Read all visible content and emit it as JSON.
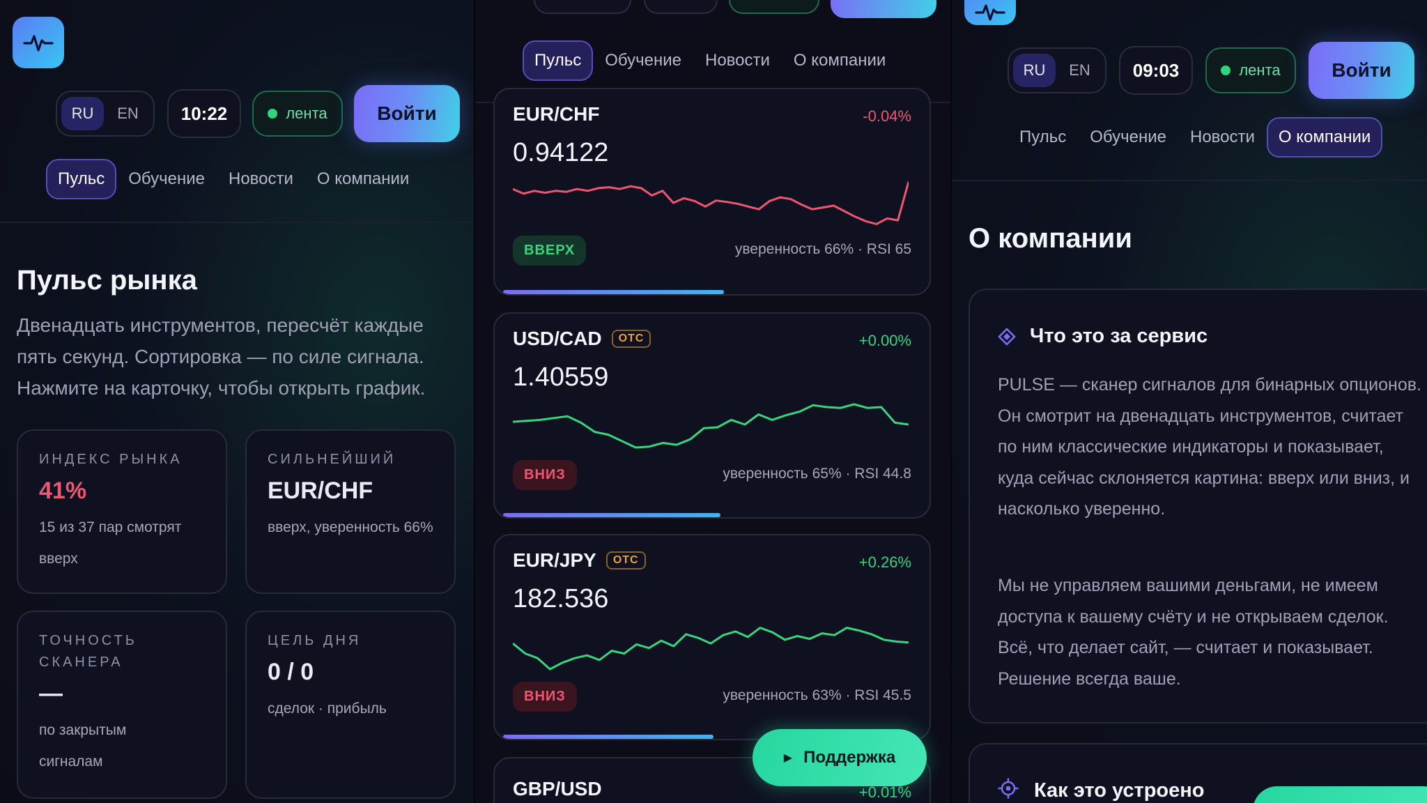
{
  "common": {
    "lang_ru": "RU",
    "lang_en": "EN",
    "feed_label": "лента",
    "login_label": "Войти",
    "nav": [
      "Пульс",
      "Обучение",
      "Новости",
      "О компании"
    ]
  },
  "panel1": {
    "time": "10:22",
    "title": "Пульс рынка",
    "lead": "Двенадцать инструментов, пересчёт каждые пять секунд. Сортировка — по силе сигнала. Нажмите на карточку, чтобы открыть график.",
    "stats": [
      {
        "key": "ИНДЕКС РЫНКА",
        "value": "41%",
        "desc": "15 из 37 пар смотрят вверх",
        "color": "#f05571"
      },
      {
        "key": "СИЛЬНЕЙШИЙ",
        "value": "EUR/CHF",
        "desc": "вверх, уверенность 66%",
        "color": "#f4f5fb"
      },
      {
        "key": "ТОЧНОСТЬ СКАНЕРА",
        "value": "—",
        "desc": "по закрытым сигналам",
        "color": "#f4f5fb"
      },
      {
        "key": "ЦЕЛЬ ДНЯ",
        "value": "0 / 0",
        "desc": "сделок · прибыль",
        "color": "#f4f5fb"
      }
    ]
  },
  "panel2": {
    "cards": [
      {
        "pair": "EUR/CHF",
        "otc": "",
        "change": "-0.04%",
        "price": "0.94122",
        "badge": "ВВЕРХ",
        "direction": "up",
        "confidence": "уверенность 66% · RSI 65",
        "confidence_pct": 66,
        "trend_color": "#f05571",
        "change_color": "#f05571",
        "spark": [
          0.8,
          0.7,
          0.76,
          0.72,
          0.76,
          0.74,
          0.8,
          0.76,
          0.82,
          0.84,
          0.8,
          0.86,
          0.82,
          0.66,
          0.76,
          0.5,
          0.6,
          0.54,
          0.42,
          0.55,
          0.52,
          0.48,
          0.42,
          0.36,
          0.54,
          0.62,
          0.58,
          0.46,
          0.36,
          0.4,
          0.44,
          0.32,
          0.2,
          0.1,
          0.04,
          0.16,
          0.12,
          0.96
        ]
      },
      {
        "pair": "USD/CAD",
        "otc": "OTC",
        "change": "+0.00%",
        "price": "1.40559",
        "badge": "ВНИЗ",
        "direction": "down",
        "confidence": "уверенность 65% · RSI 44.8",
        "confidence_pct": 65,
        "trend_color": "#38d57f",
        "change_color": "#38d57f",
        "spark": [
          0.62,
          0.64,
          0.66,
          0.7,
          0.74,
          0.6,
          0.4,
          0.34,
          0.2,
          0.06,
          0.08,
          0.16,
          0.12,
          0.24,
          0.48,
          0.5,
          0.66,
          0.56,
          0.78,
          0.66,
          0.76,
          0.84,
          0.98,
          0.94,
          0.92,
          1.0,
          0.92,
          0.94,
          0.6,
          0.56
        ]
      },
      {
        "pair": "EUR/JPY",
        "otc": "OTC",
        "change": "+0.26%",
        "price": "182.536",
        "badge": "ВНИЗ",
        "direction": "down",
        "confidence": "уверенность 63% · RSI 45.5",
        "confidence_pct": 63,
        "trend_color": "#38d57f",
        "change_color": "#38d57f",
        "spark": [
          0.62,
          0.4,
          0.3,
          0.06,
          0.2,
          0.3,
          0.36,
          0.26,
          0.46,
          0.4,
          0.6,
          0.52,
          0.68,
          0.56,
          0.82,
          0.74,
          0.62,
          0.8,
          0.88,
          0.76,
          0.96,
          0.86,
          0.7,
          0.78,
          0.72,
          0.84,
          0.8,
          0.96,
          0.9,
          0.82,
          0.7,
          0.66,
          0.64
        ]
      },
      {
        "pair": "GBP/USD",
        "otc": "",
        "change": "+0.01%",
        "price": "",
        "badge": "",
        "direction": "",
        "confidence": "",
        "confidence_pct": 0,
        "trend_color": "#38d57f",
        "change_color": "#38d57f",
        "spark": []
      }
    ],
    "support_label": "Поддержка"
  },
  "panel3": {
    "time": "09:03",
    "title": "О компании",
    "section1_title": "Что это за сервис",
    "section1_p1": "PULSE — сканер сигналов для бинарных опционов. Он смотрит на двенадцать инструментов, считает по ним классические индикаторы и показывает, куда сейчас склоняется картина: вверх или вниз, и насколько уверенно.",
    "section1_p2": "Мы не управляем вашими деньгами, не имеем доступа к вашему счёту и не открываем сделок. Всё, что делает сайт, — считает и показывает. Решение всегда ваше.",
    "section2_title": "Как это устроено"
  }
}
